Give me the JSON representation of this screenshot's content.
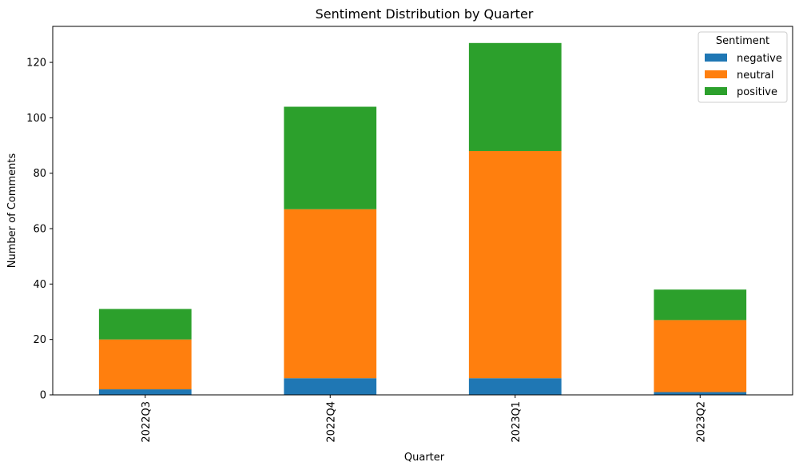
{
  "chart_data": {
    "type": "bar",
    "stacked": true,
    "title": "Sentiment Distribution by Quarter",
    "xlabel": "Quarter",
    "ylabel": "Number of Comments",
    "categories": [
      "2022Q3",
      "2022Q4",
      "2023Q1",
      "2023Q2"
    ],
    "series": [
      {
        "name": "negative",
        "color": "#1f77b4",
        "values": [
          2,
          6,
          6,
          1
        ]
      },
      {
        "name": "neutral",
        "color": "#ff7f0e",
        "values": [
          18,
          61,
          82,
          26
        ]
      },
      {
        "name": "positive",
        "color": "#2ca02c",
        "values": [
          11,
          37,
          39,
          11
        ]
      }
    ],
    "ylim": [
      0,
      133
    ],
    "yticks": [
      0,
      20,
      40,
      60,
      80,
      100,
      120
    ],
    "grid": false,
    "legend": {
      "title": "Sentiment",
      "position": "top-right"
    }
  }
}
